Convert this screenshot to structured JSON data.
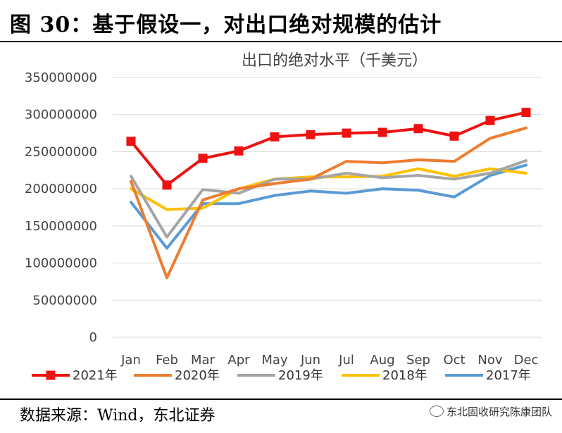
{
  "figure": {
    "title": "图  30：基于假设一，对出口绝对规模的估计",
    "source": "数据来源：Wind，东北证券",
    "watermark": "东北固收研究陈康团队"
  },
  "colors": {
    "2021": "#ee1111",
    "2020": "#ed7d31",
    "2019": "#a5a5a5",
    "2018": "#ffc000",
    "2017": "#5b9bd5"
  },
  "chart_data": {
    "type": "line",
    "title": "出口的绝对水平（千美元）",
    "categories": [
      "Jan",
      "Feb",
      "Mar",
      "Apr",
      "May",
      "Jun",
      "Jul",
      "Aug",
      "Sep",
      "Oct",
      "Nov",
      "Dec"
    ],
    "ylim": [
      0,
      350000000
    ],
    "yticks": [
      0,
      50000000,
      100000000,
      150000000,
      200000000,
      250000000,
      300000000,
      350000000
    ],
    "grid": true,
    "legend_position": "bottom",
    "series": [
      {
        "name": "2021年",
        "key": "2021",
        "marker": "square",
        "values": [
          264000000,
          205000000,
          241000000,
          251000000,
          270000000,
          273000000,
          275000000,
          276000000,
          281000000,
          271000000,
          292000000,
          303000000
        ]
      },
      {
        "name": "2020年",
        "key": "2020",
        "marker": "none",
        "values": [
          210000000,
          80000000,
          185000000,
          200000000,
          207000000,
          213000000,
          237000000,
          235000000,
          239000000,
          237000000,
          268000000,
          282000000
        ]
      },
      {
        "name": "2019年",
        "key": "2019",
        "marker": "none",
        "values": [
          217000000,
          135000000,
          199000000,
          194000000,
          213000000,
          213000000,
          221000000,
          215000000,
          218000000,
          213000000,
          221000000,
          238000000
        ]
      },
      {
        "name": "2018年",
        "key": "2018",
        "marker": "none",
        "values": [
          200000000,
          172000000,
          174000000,
          200000000,
          213000000,
          216000000,
          216000000,
          217000000,
          227000000,
          217000000,
          227000000,
          221000000
        ]
      },
      {
        "name": "2017年",
        "key": "2017",
        "marker": "none",
        "values": [
          182000000,
          120000000,
          180000000,
          180000000,
          191000000,
          197000000,
          194000000,
          200000000,
          198000000,
          189000000,
          218000000,
          232000000
        ]
      }
    ]
  }
}
